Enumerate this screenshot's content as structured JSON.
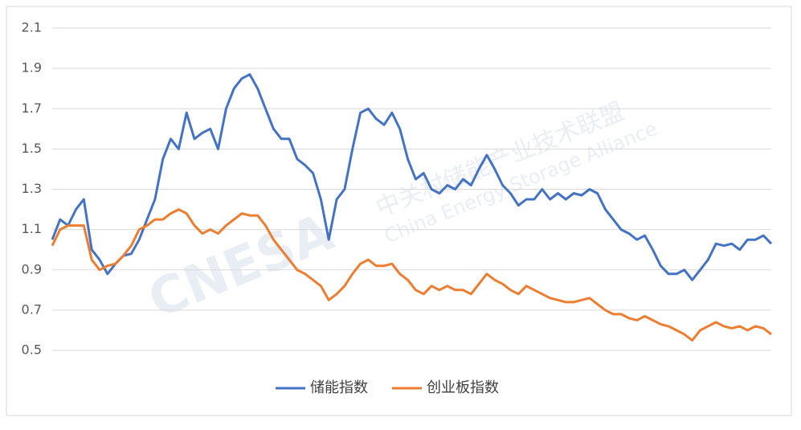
{
  "chart_data": {
    "type": "line",
    "ylim": [
      0.5,
      2.1
    ],
    "yticks": [
      0.5,
      0.7,
      0.9,
      1.1,
      1.3,
      1.5,
      1.7,
      1.9,
      2.1
    ],
    "grid": true,
    "legend": "bottom",
    "watermark": {
      "logo": "CNESA",
      "name": "中关村储能产业技术联盟",
      "name_en": "China Energy Storage Alliance"
    },
    "series": [
      {
        "name": "储能指数",
        "color": "#4472c4",
        "values": [
          1.05,
          1.15,
          1.12,
          1.2,
          1.25,
          1.0,
          0.95,
          0.88,
          0.93,
          0.97,
          0.98,
          1.05,
          1.15,
          1.25,
          1.45,
          1.55,
          1.5,
          1.68,
          1.55,
          1.58,
          1.6,
          1.5,
          1.7,
          1.8,
          1.85,
          1.87,
          1.8,
          1.7,
          1.6,
          1.55,
          1.55,
          1.45,
          1.42,
          1.38,
          1.25,
          1.05,
          1.25,
          1.3,
          1.5,
          1.68,
          1.7,
          1.65,
          1.62,
          1.68,
          1.6,
          1.45,
          1.35,
          1.38,
          1.3,
          1.28,
          1.32,
          1.3,
          1.35,
          1.32,
          1.4,
          1.47,
          1.4,
          1.32,
          1.28,
          1.22,
          1.25,
          1.25,
          1.3,
          1.25,
          1.28,
          1.25,
          1.28,
          1.27,
          1.3,
          1.28,
          1.2,
          1.15,
          1.1,
          1.08,
          1.05,
          1.07,
          1.0,
          0.92,
          0.88,
          0.88,
          0.9,
          0.85,
          0.9,
          0.95,
          1.03,
          1.02,
          1.03,
          1.0,
          1.05,
          1.05,
          1.07,
          1.03
        ]
      },
      {
        "name": "创业板指数",
        "color": "#ed7d31",
        "values": [
          1.02,
          1.1,
          1.12,
          1.12,
          1.12,
          0.95,
          0.9,
          0.92,
          0.93,
          0.97,
          1.02,
          1.1,
          1.12,
          1.15,
          1.15,
          1.18,
          1.2,
          1.18,
          1.12,
          1.08,
          1.1,
          1.08,
          1.12,
          1.15,
          1.18,
          1.17,
          1.17,
          1.12,
          1.05,
          1.0,
          0.95,
          0.9,
          0.88,
          0.85,
          0.82,
          0.75,
          0.78,
          0.82,
          0.88,
          0.93,
          0.95,
          0.92,
          0.92,
          0.93,
          0.88,
          0.85,
          0.8,
          0.78,
          0.82,
          0.8,
          0.82,
          0.8,
          0.8,
          0.78,
          0.83,
          0.88,
          0.85,
          0.83,
          0.8,
          0.78,
          0.82,
          0.8,
          0.78,
          0.76,
          0.75,
          0.74,
          0.74,
          0.75,
          0.76,
          0.73,
          0.7,
          0.68,
          0.68,
          0.66,
          0.65,
          0.67,
          0.65,
          0.63,
          0.62,
          0.6,
          0.58,
          0.55,
          0.6,
          0.62,
          0.64,
          0.62,
          0.61,
          0.62,
          0.6,
          0.62,
          0.61,
          0.58
        ]
      }
    ]
  }
}
